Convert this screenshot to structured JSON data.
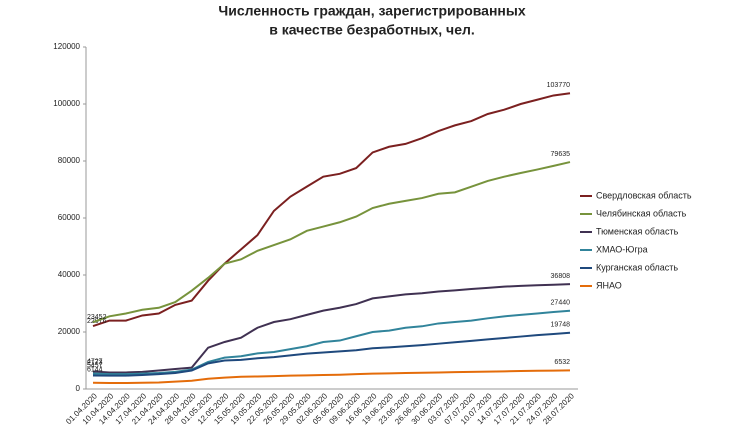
{
  "chart_data": {
    "type": "line",
    "title": [
      "Численность граждан, зарегистрированных",
      "в качестве безработных, чел."
    ],
    "categories": [
      "01.04.2020",
      "10.04.2020",
      "14.04.2020",
      "17.04.2020",
      "21.04.2020",
      "24.04.2020",
      "28.04.2020",
      "01.05.2020",
      "12.05.2020",
      "15.05.2020",
      "19.05.2020",
      "22.05.2020",
      "26.05.2020",
      "29.05.2020",
      "02.06.2020",
      "05.06.2020",
      "09.06.2020",
      "16.06.2020",
      "19.06.2020",
      "23.06.2020",
      "26.06.2020",
      "30.06.2020",
      "03.07.2020",
      "07.07.2020",
      "10.07.2020",
      "14.07.2020",
      "17.07.2020",
      "21.07.2020",
      "24.07.2020",
      "28.07.2020"
    ],
    "ylim": [
      0,
      120000
    ],
    "yticks": [
      0,
      20000,
      40000,
      60000,
      80000,
      100000,
      120000
    ],
    "grid": false,
    "legend": "right",
    "series": [
      {
        "name": "Свердловская область",
        "color": "#7b2020",
        "data_labels": [
          0,
          29
        ],
        "values": [
          22076,
          24000,
          24000,
          25800,
          26500,
          29500,
          31000,
          38000,
          44000,
          49000,
          54000,
          62500,
          67500,
          71000,
          74500,
          75500,
          77500,
          83000,
          85000,
          86000,
          88000,
          90500,
          92500,
          94000,
          96500,
          98000,
          100000,
          101500,
          103000,
          103770
        ]
      },
      {
        "name": "Челябинская область",
        "color": "#77933c",
        "data_labels": [
          0,
          29
        ],
        "values": [
          23452,
          25500,
          26500,
          27800,
          28500,
          30500,
          34500,
          39000,
          44000,
          45500,
          48500,
          50500,
          52500,
          55500,
          57000,
          58500,
          60500,
          63500,
          65000,
          66000,
          67000,
          68500,
          69000,
          71000,
          73000,
          74500,
          75800,
          77000,
          78300,
          79635
        ]
      },
      {
        "name": "Тюменская область",
        "color": "#403152",
        "data_labels": [
          0,
          29
        ],
        "values": [
          6144,
          5800,
          5800,
          6000,
          6500,
          7000,
          7500,
          14500,
          16500,
          18000,
          21500,
          23500,
          24500,
          26000,
          27500,
          28500,
          29800,
          31800,
          32500,
          33200,
          33600,
          34200,
          34600,
          35100,
          35500,
          35900,
          36200,
          36400,
          36600,
          36808
        ]
      },
      {
        "name": "ХМАО-Югра",
        "color": "#31849b",
        "data_labels": [
          0,
          29
        ],
        "values": [
          5457,
          5200,
          5200,
          5400,
          5600,
          6000,
          6800,
          9500,
          11000,
          11500,
          12500,
          13000,
          14000,
          15000,
          16500,
          17000,
          18500,
          20000,
          20500,
          21500,
          22000,
          23000,
          23500,
          24000,
          24800,
          25500,
          26000,
          26500,
          27000,
          27440
        ]
      },
      {
        "name": "Курганская область",
        "color": "#1f497d",
        "data_labels": [
          0,
          29
        ],
        "values": [
          4727,
          4700,
          4700,
          4900,
          5200,
          5600,
          6500,
          9000,
          10000,
          10200,
          10800,
          11200,
          11800,
          12400,
          12800,
          13200,
          13600,
          14300,
          14600,
          15000,
          15400,
          15900,
          16400,
          16900,
          17400,
          17900,
          18400,
          18900,
          19300,
          19748
        ]
      },
      {
        "name": "ЯНАО",
        "color": "#e46c0a",
        "data_labels": [
          0,
          29
        ],
        "values": [
          2173,
          2100,
          2100,
          2200,
          2300,
          2600,
          2900,
          3600,
          4000,
          4300,
          4400,
          4500,
          4700,
          4800,
          4900,
          5000,
          5200,
          5400,
          5500,
          5600,
          5700,
          5800,
          5900,
          6000,
          6100,
          6200,
          6300,
          6400,
          6450,
          6532
        ]
      }
    ]
  }
}
